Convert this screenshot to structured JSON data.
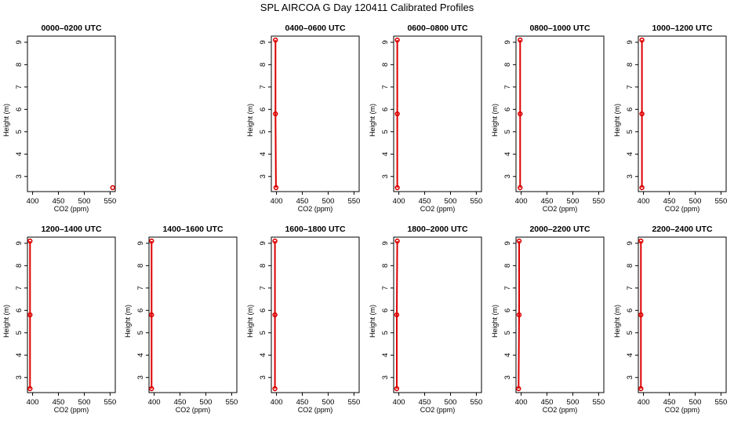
{
  "figure": {
    "title": "SPL AIRCOA G  Day 120411  Calibrated Profiles"
  },
  "colors": {
    "series": "#dd0000",
    "axis": "#000000"
  },
  "chart_data": [
    {
      "type": "line",
      "title": "0000–0200 UTC",
      "xlabel": "CO2 (ppm)",
      "ylabel": "Height (m)",
      "xlim": [
        390,
        560
      ],
      "ylim": [
        2.5,
        9.1
      ],
      "xticks": [
        400,
        450,
        500,
        550
      ],
      "yticks": [
        3,
        4,
        5,
        6,
        7,
        8,
        9
      ],
      "series": [
        {
          "points": [
            {
              "x": 555,
              "y": 2.5
            }
          ]
        }
      ]
    },
    {
      "type": "line",
      "title": "0400–0600 UTC",
      "xlabel": "CO2 (ppm)",
      "ylabel": "Height (m)",
      "xlim": [
        390,
        560
      ],
      "ylim": [
        2.5,
        9.1
      ],
      "xticks": [
        400,
        450,
        500,
        550
      ],
      "yticks": [
        3,
        4,
        5,
        6,
        7,
        8,
        9
      ],
      "series": [
        {
          "points": [
            {
              "x": 399,
              "y": 2.5
            },
            {
              "x": 398,
              "y": 5.8
            },
            {
              "x": 398,
              "y": 9.1
            }
          ]
        }
      ]
    },
    {
      "type": "line",
      "title": "0600–0800 UTC",
      "xlabel": "CO2 (ppm)",
      "ylabel": "Height (m)",
      "xlim": [
        390,
        560
      ],
      "ylim": [
        2.5,
        9.1
      ],
      "xticks": [
        400,
        450,
        500,
        550
      ],
      "yticks": [
        3,
        4,
        5,
        6,
        7,
        8,
        9
      ],
      "series": [
        {
          "points": [
            {
              "x": 397,
              "y": 2.5
            },
            {
              "x": 397,
              "y": 5.8
            },
            {
              "x": 397,
              "y": 9.1
            }
          ]
        }
      ]
    },
    {
      "type": "line",
      "title": "0800–1000 UTC",
      "xlabel": "CO2 (ppm)",
      "ylabel": "Height (m)",
      "xlim": [
        390,
        560
      ],
      "ylim": [
        2.5,
        9.1
      ],
      "xticks": [
        400,
        450,
        500,
        550
      ],
      "yticks": [
        3,
        4,
        5,
        6,
        7,
        8,
        9
      ],
      "series": [
        {
          "points": [
            {
              "x": 398,
              "y": 2.5
            },
            {
              "x": 398,
              "y": 5.8
            },
            {
              "x": 398,
              "y": 9.1
            }
          ]
        }
      ]
    },
    {
      "type": "line",
      "title": "1000–1200 UTC",
      "xlabel": "CO2 (ppm)",
      "ylabel": "Height (m)",
      "xlim": [
        390,
        560
      ],
      "ylim": [
        2.5,
        9.1
      ],
      "xticks": [
        400,
        450,
        500,
        550
      ],
      "yticks": [
        3,
        4,
        5,
        6,
        7,
        8,
        9
      ],
      "series": [
        {
          "points": [
            {
              "x": 397,
              "y": 2.5
            },
            {
              "x": 397,
              "y": 5.8
            },
            {
              "x": 397,
              "y": 9.1
            }
          ]
        }
      ]
    },
    {
      "type": "line",
      "title": "1200–1400 UTC",
      "xlabel": "CO2 (ppm)",
      "ylabel": "Height (m)",
      "xlim": [
        390,
        560
      ],
      "ylim": [
        2.5,
        9.1
      ],
      "xticks": [
        400,
        450,
        500,
        550
      ],
      "yticks": [
        3,
        4,
        5,
        6,
        7,
        8,
        9
      ],
      "series": [
        {
          "points": [
            {
              "x": 395,
              "y": 2.5
            },
            {
              "x": 395,
              "y": 5.8
            },
            {
              "x": 395,
              "y": 9.1
            }
          ]
        }
      ]
    },
    {
      "type": "line",
      "title": "1400–1600 UTC",
      "xlabel": "CO2 (ppm)",
      "ylabel": "Height (m)",
      "xlim": [
        390,
        560
      ],
      "ylim": [
        2.5,
        9.1
      ],
      "xticks": [
        400,
        450,
        500,
        550
      ],
      "yticks": [
        3,
        4,
        5,
        6,
        7,
        8,
        9
      ],
      "series": [
        {
          "points": [
            {
              "x": 395,
              "y": 2.5
            },
            {
              "x": 395,
              "y": 5.8
            },
            {
              "x": 395,
              "y": 9.1
            }
          ]
        }
      ]
    },
    {
      "type": "line",
      "title": "1600–1800 UTC",
      "xlabel": "CO2 (ppm)",
      "ylabel": "Height (m)",
      "xlim": [
        390,
        560
      ],
      "ylim": [
        2.5,
        9.1
      ],
      "xticks": [
        400,
        450,
        500,
        550
      ],
      "yticks": [
        3,
        4,
        5,
        6,
        7,
        8,
        9
      ],
      "series": [
        {
          "points": [
            {
              "x": 397,
              "y": 2.5
            },
            {
              "x": 397,
              "y": 5.8
            },
            {
              "x": 397,
              "y": 9.1
            }
          ]
        }
      ]
    },
    {
      "type": "line",
      "title": "1800–2000 UTC",
      "xlabel": "CO2 (ppm)",
      "ylabel": "Height (m)",
      "xlim": [
        390,
        560
      ],
      "ylim": [
        2.5,
        9.1
      ],
      "xticks": [
        400,
        450,
        500,
        550
      ],
      "yticks": [
        3,
        4,
        5,
        6,
        7,
        8,
        9
      ],
      "series": [
        {
          "points": [
            {
              "x": 396,
              "y": 2.5
            },
            {
              "x": 396,
              "y": 5.8
            },
            {
              "x": 397,
              "y": 9.1
            }
          ]
        }
      ]
    },
    {
      "type": "line",
      "title": "2000–2200 UTC",
      "xlabel": "CO2 (ppm)",
      "ylabel": "Height (m)",
      "xlim": [
        390,
        560
      ],
      "ylim": [
        2.5,
        9.1
      ],
      "xticks": [
        400,
        450,
        500,
        550
      ],
      "yticks": [
        3,
        4,
        5,
        6,
        7,
        8,
        9
      ],
      "series": [
        {
          "points": [
            {
              "x": 395,
              "y": 2.5
            },
            {
              "x": 396,
              "y": 5.8
            },
            {
              "x": 396,
              "y": 9.1
            }
          ]
        }
      ]
    },
    {
      "type": "line",
      "title": "2200–2400 UTC",
      "xlabel": "CO2 (ppm)",
      "ylabel": "Height (m)",
      "xlim": [
        390,
        560
      ],
      "ylim": [
        2.5,
        9.1
      ],
      "xticks": [
        400,
        450,
        500,
        550
      ],
      "yticks": [
        3,
        4,
        5,
        6,
        7,
        8,
        9
      ],
      "series": [
        {
          "points": [
            {
              "x": 395,
              "y": 2.5
            },
            {
              "x": 395,
              "y": 5.8
            },
            {
              "x": 395,
              "y": 9.1
            }
          ]
        }
      ]
    }
  ]
}
